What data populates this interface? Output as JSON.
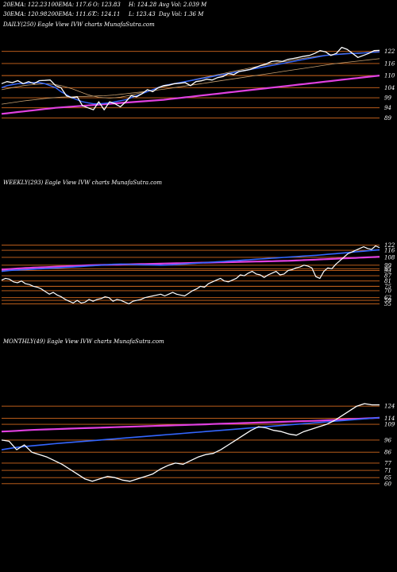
{
  "header": {
    "row1": [
      "20EMA: 122.23",
      "100EMA: 117.6",
      "O: 123.83",
      "H: 124.28",
      "Avg Vol: 2.039 M"
    ],
    "row2": [
      "30EMA: 120.98",
      "200EMA: 111.67",
      "C: 124.11",
      "L: 123.43",
      "Day Vol: 1.36  M"
    ]
  },
  "colors": {
    "price": "#ffffff",
    "ema_short": "#3366ff",
    "ema_long": "#e040e0",
    "level": "#d2691e",
    "other": "#c8a070"
  },
  "chart_data": [
    {
      "type": "line",
      "title": "DAILY(250) Eagle  View  IVW charts MunafaSutra.com",
      "yticks": [
        122,
        116,
        110,
        104,
        99,
        94,
        89
      ],
      "ylim": [
        86,
        127
      ],
      "series": [
        {
          "values": [
            106,
            107,
            106.5,
            107.5,
            106,
            107,
            106,
            107.5,
            107.6,
            107.8,
            105,
            104,
            100,
            99,
            99.5,
            95,
            94,
            93,
            97,
            93,
            97,
            96,
            94.5,
            97,
            100,
            99.5,
            101,
            103,
            102,
            104,
            105,
            105.3,
            106,
            106.2,
            106.5,
            105,
            107,
            107.4,
            108.2,
            107.8,
            109,
            109.5,
            111,
            110.5,
            112,
            112.5,
            113,
            114,
            115,
            115.8,
            117,
            117.3,
            117,
            118,
            118.5,
            119,
            119.6,
            120,
            121,
            122.4,
            121.8,
            120,
            121,
            124,
            123,
            121,
            119,
            120,
            121,
            122.4,
            122.5
          ]
        },
        {
          "values": [
            104,
            105,
            105.5,
            106,
            106,
            106.3,
            106.5,
            106.5,
            106,
            105,
            104,
            102,
            100.5,
            99,
            98,
            97,
            96.5,
            96,
            96,
            96.2,
            96.5,
            97,
            97.5,
            98,
            99,
            100,
            101,
            102,
            103,
            104,
            105,
            105.5,
            106,
            106.5,
            107,
            107.5,
            108,
            108.5,
            109,
            109.5,
            110,
            110.5,
            111,
            111.5,
            112,
            112.5,
            113,
            113.5,
            114,
            114.5,
            115,
            115.5,
            116,
            116.5,
            117,
            117.5,
            118,
            118.5,
            119,
            119.5,
            120,
            120.2,
            120.4,
            120.6,
            120.8,
            121,
            121,
            121.2,
            121.4,
            121.6,
            121.8
          ]
        },
        {
          "values": [
            103,
            103.5,
            104,
            104.5,
            105,
            105.3,
            105.5,
            105.8,
            106,
            105.8,
            105.5,
            105,
            104.3,
            103.5,
            102.5,
            101.5,
            100.5,
            99.8,
            99.2,
            99,
            98.8,
            99,
            99.3,
            99.8,
            100.3,
            101,
            101.6,
            102.2,
            103,
            103.7,
            104.5,
            105.1,
            105.8,
            106.4,
            107,
            107.6,
            108.2,
            108.8,
            109.3,
            109.9,
            110.5,
            111,
            111.6,
            112.1,
            112.7,
            113.2,
            113.8,
            114.3,
            114.8,
            115.3,
            115.8,
            116.3,
            116.8,
            117.2,
            117.7,
            118.2,
            118.6,
            119,
            119.4,
            119.8,
            120.1,
            120.4,
            120.6,
            120.8,
            121,
            121.1,
            121.2,
            121.3,
            121.4,
            121.5,
            121.6
          ]
        },
        {
          "values": [
            95.8,
            96.2,
            96.6,
            97,
            97.4,
            97.7,
            98,
            98.3,
            98.6,
            98.9,
            99.1,
            99.3,
            99.4,
            99.5,
            99.6,
            99.6,
            99.7,
            99.8,
            99.9,
            100,
            100.2,
            100.4,
            100.7,
            101,
            101.3,
            101.6,
            101.9,
            102.2,
            102.5,
            102.9,
            103.2,
            103.6,
            104,
            104.4,
            104.8,
            105.2,
            105.6,
            106,
            106.4,
            106.8,
            107.2,
            107.6,
            108,
            108.4,
            108.8,
            109.2,
            109.6,
            110,
            110.4,
            110.8,
            111.2,
            111.6,
            112,
            112.4,
            112.8,
            113.2,
            113.6,
            114,
            114.4,
            114.8,
            115.2,
            115.6,
            116,
            116.3,
            116.6,
            116.9,
            117.2,
            117.5,
            117.8,
            118.1,
            118.4
          ]
        },
        {
          "values": [
            91,
            91.3,
            91.6,
            91.9,
            92.2,
            92.5,
            92.8,
            93.1,
            93.4,
            93.7,
            94,
            94.2,
            94.4,
            94.6,
            94.8,
            95,
            95.2,
            95.4,
            95.6,
            95.8,
            96,
            96.2,
            96.4,
            96.6,
            96.8,
            97,
            97.2,
            97.4,
            97.6,
            97.8,
            98,
            98.3,
            98.6,
            98.9,
            99.2,
            99.5,
            99.8,
            100.1,
            100.4,
            100.7,
            101,
            101.3,
            101.6,
            101.9,
            102.2,
            102.5,
            102.8,
            103.1,
            103.4,
            103.7,
            104,
            104.3,
            104.6,
            104.9,
            105.2,
            105.5,
            105.8,
            106.1,
            106.4,
            106.7,
            107,
            107.3,
            107.6,
            107.9,
            108.2,
            108.5,
            108.8,
            109.1,
            109.4,
            109.7,
            110
          ]
        }
      ]
    },
    {
      "type": "line",
      "title": "WEEKLY(293) Eagle  View  IVW charts MunafaSutra.com",
      "yticks": [
        122,
        116,
        108,
        99,
        95,
        93,
        87,
        81,
        75,
        70,
        62,
        59,
        55
      ],
      "ylim": [
        50,
        126
      ],
      "series": [
        {
          "values": [
            82,
            84,
            83,
            80,
            79,
            81,
            78,
            77,
            75,
            74,
            72,
            69,
            66,
            68,
            65,
            63,
            60,
            58,
            56,
            59,
            56,
            57,
            60,
            58,
            60,
            61,
            63,
            62,
            58,
            60,
            59,
            57,
            55,
            58,
            59,
            60,
            62,
            63,
            64,
            65,
            66,
            64,
            66,
            68,
            66,
            65,
            64,
            67,
            70,
            72,
            75,
            74,
            78,
            80,
            82,
            84,
            81,
            80,
            82,
            84,
            88,
            87,
            90,
            92,
            89,
            88,
            85,
            88,
            90,
            92,
            88,
            89,
            93,
            94,
            96,
            97,
            99,
            98,
            96,
            86,
            84,
            92,
            96,
            95,
            100,
            104,
            108,
            112,
            114,
            116,
            118,
            120,
            118,
            117,
            121,
            119
          ]
        },
        {
          "values": [
            92,
            92.5,
            93,
            93.3,
            93.5,
            93.8,
            94,
            94.2,
            94.5,
            94.8,
            95,
            95.2,
            95.5,
            95.8,
            96,
            96.2,
            96.5,
            96.8,
            97,
            97.3,
            97.6,
            97.9,
            98.2,
            98.5,
            98.8,
            99.1,
            99.4,
            99.7,
            100,
            100.2,
            100.3,
            100.2,
            100,
            99.8,
            99.6,
            99.5,
            99.4,
            99.3,
            99.2,
            99.1,
            99,
            99.1,
            99.3,
            99.5,
            99.8,
            100.1,
            100.4,
            100.7,
            101,
            101.3,
            101.6,
            101.9,
            102.2,
            102.5,
            102.8,
            103.1,
            103.4,
            103.7,
            104,
            104.3,
            104.6,
            104.9,
            105.2,
            105.5,
            105.8,
            106.1,
            106.4,
            106.7,
            107,
            107.3,
            107.6,
            107.9,
            108.2,
            108.5,
            108.8,
            109.1,
            109.4,
            109.7,
            110,
            110.3,
            110.6,
            111,
            111.4,
            111.8,
            112.2,
            112.6,
            113,
            113.4,
            113.8,
            114.2,
            114.6,
            115,
            115.4,
            115.8,
            116.2,
            116.6
          ]
        },
        {
          "values": [
            94,
            94.3,
            94.6,
            94.9,
            95.2,
            95.5,
            95.8,
            96,
            96.2,
            96.4,
            96.6,
            96.8,
            97,
            97.2,
            97.4,
            97.6,
            97.8,
            98,
            98.2,
            98.4,
            98.6,
            98.8,
            99,
            99.1,
            99.2,
            99.3,
            99.4,
            99.5,
            99.6,
            99.7,
            99.8,
            99.9,
            100,
            100.1,
            100.2,
            100.3,
            100.4,
            100.5,
            100.6,
            100.7,
            100.8,
            100.9,
            101,
            101.1,
            101.2,
            101.3,
            101.4,
            101.5,
            101.6,
            101.7,
            101.8,
            101.9,
            102,
            102.1,
            102.2,
            102.3,
            102.4,
            102.5,
            102.6,
            102.7,
            102.8,
            102.9,
            103,
            103.1,
            103.2,
            103.3,
            103.4,
            103.5,
            103.6,
            103.7,
            103.8,
            103.9,
            104,
            104.2,
            104.4,
            104.6,
            104.8,
            105,
            105.2,
            105.4,
            105.6,
            105.8,
            106,
            106.2,
            106.4,
            106.6,
            106.8,
            107,
            107.2,
            107.4,
            107.6,
            107.8,
            108,
            108.2,
            108.4,
            108.6
          ]
        }
      ]
    },
    {
      "type": "line",
      "title": "MONTHLY(49) Eagle  View  IVW charts MunafaSutra.com",
      "yticks": [
        124,
        114,
        109,
        96,
        86,
        77,
        71,
        65,
        60
      ],
      "ylim": [
        54,
        130
      ],
      "series": [
        {
          "values": [
            96,
            95,
            88,
            92,
            86,
            84,
            82,
            79,
            76,
            72,
            68,
            64,
            62,
            64,
            66,
            65,
            63,
            62,
            64,
            66,
            68,
            72,
            75,
            77,
            76,
            79,
            82,
            84,
            85,
            88,
            92,
            96,
            100,
            104,
            107,
            106,
            104,
            103,
            101,
            100,
            103,
            105,
            107,
            109,
            112,
            116,
            120,
            124,
            126,
            125,
            125
          ]
        },
        {
          "values": [
            88,
            89,
            90,
            90.6,
            91.2,
            91.8,
            92.4,
            93,
            93.5,
            94,
            94.5,
            95,
            95.5,
            96,
            96.5,
            97,
            97.5,
            98,
            98.5,
            99,
            99.5,
            100,
            100.5,
            101,
            101.5,
            102,
            102.5,
            103,
            103.5,
            104,
            104.5,
            105,
            105.5,
            106,
            106.5,
            107,
            107.5,
            108,
            108.5,
            109,
            109.5,
            110,
            110.5,
            111,
            111.5,
            112,
            112.5,
            113,
            113.5,
            114,
            114.5
          ]
        },
        {
          "values": [
            103,
            103.3,
            103.6,
            104,
            104.3,
            104.6,
            104.8,
            105,
            105.2,
            105.4,
            105.6,
            105.8,
            106,
            106.2,
            106.4,
            106.6,
            106.8,
            107,
            107.2,
            107.4,
            107.6,
            107.8,
            108,
            108.2,
            108.4,
            108.6,
            108.8,
            109,
            109.2,
            109.4,
            109.6,
            109.8,
            110,
            110.2,
            110.4,
            110.6,
            110.8,
            111,
            111.2,
            111.4,
            111.6,
            111.8,
            112,
            112.3,
            112.6,
            112.9,
            113.2,
            113.5,
            113.8,
            114.1,
            114.4
          ]
        }
      ]
    }
  ]
}
